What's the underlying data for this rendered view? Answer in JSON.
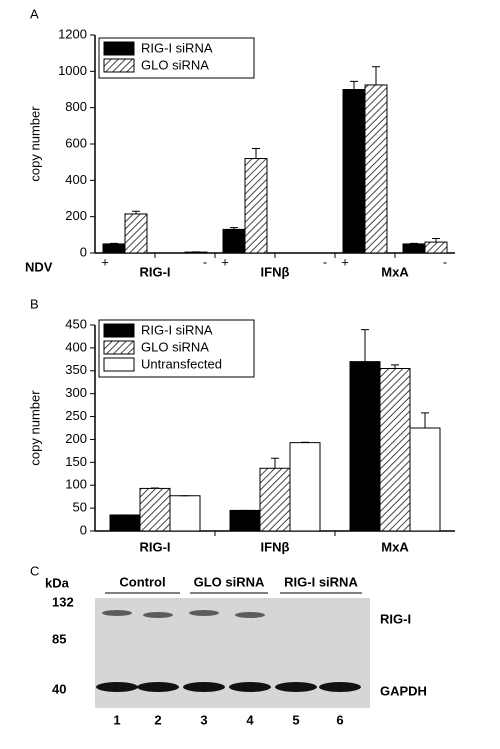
{
  "chart_data": [
    {
      "type": "bar",
      "panel": "A",
      "ylabel": "copy number",
      "x_label": "NDV",
      "categories": [
        "+",
        "-",
        "+",
        "-",
        "+",
        "-"
      ],
      "groups": [
        "RIG-I",
        "IFNβ",
        "MxA"
      ],
      "series": [
        {
          "name": "RIG-I siRNA",
          "color": "#000000",
          "hatch": false,
          "values": [
            50,
            0,
            130,
            0,
            900,
            50
          ],
          "errors": [
            3,
            0,
            10,
            0,
            45,
            3
          ]
        },
        {
          "name": "GLO siRNA",
          "color": "#555555",
          "hatch": true,
          "values": [
            215,
            5,
            520,
            0,
            925,
            60
          ],
          "errors": [
            15,
            1,
            55,
            0,
            100,
            20
          ]
        }
      ],
      "ylim": [
        0,
        1200
      ],
      "yticks": [
        0,
        200,
        400,
        600,
        800,
        1000,
        1200
      ],
      "legend": "upper left"
    },
    {
      "type": "bar",
      "panel": "B",
      "ylabel": "copy number",
      "categories": [
        "RIG-I",
        "IFNβ",
        "MxA"
      ],
      "series": [
        {
          "name": "RIG-I siRNA",
          "color": "#000000",
          "hatch": false,
          "values": [
            35,
            45,
            370
          ],
          "errors": [
            0,
            0,
            70
          ]
        },
        {
          "name": "GLO siRNA",
          "color": "#555555",
          "hatch": true,
          "values": [
            93,
            137,
            355
          ],
          "errors": [
            1,
            22,
            8
          ]
        },
        {
          "name": "Untransfected",
          "color": "#ffffff",
          "hatch": false,
          "values": [
            77,
            193,
            225
          ],
          "errors": [
            0,
            1,
            33
          ]
        }
      ],
      "ylim": [
        0,
        450
      ],
      "yticks": [
        0,
        50,
        100,
        150,
        200,
        250,
        300,
        350,
        400,
        450
      ],
      "legend": "upper left"
    }
  ],
  "blot": {
    "panel": "C",
    "unit": "kDa",
    "markers": [
      "132",
      "85",
      "40"
    ],
    "groups": [
      "Control",
      "GLO siRNA",
      "RIG-I siRNA"
    ],
    "bands": [
      "RIG-I",
      "GAPDH"
    ],
    "lanes": [
      "1",
      "2",
      "3",
      "4",
      "5",
      "6"
    ]
  }
}
